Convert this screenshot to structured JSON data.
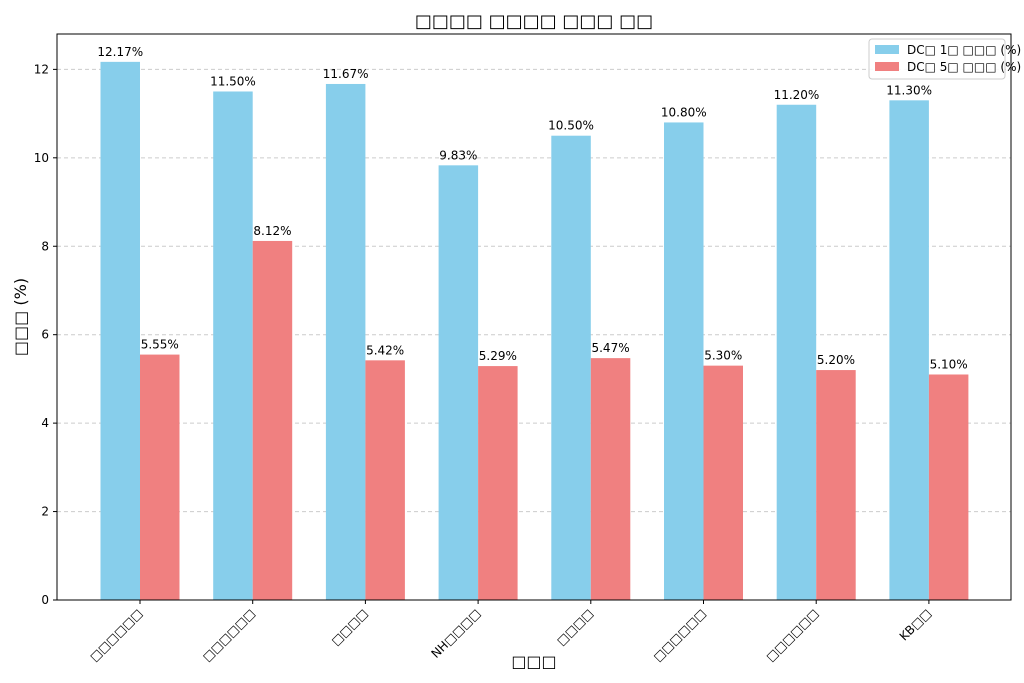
{
  "chart_data": {
    "type": "bar",
    "title": "□□□□ □□□□ □□□ □□",
    "xlabel": "□□□",
    "ylabel": "□□□ (%)",
    "categories": [
      "□□□□□□",
      "□□□□□□",
      "□□□□",
      "NH□□□□",
      "□□□□",
      "□□□□□□",
      "□□□□□□",
      "KB□□"
    ],
    "series": [
      {
        "name": "DC□ 1□ □□□ (%)",
        "color": "#87CEEB",
        "values": [
          12.17,
          11.5,
          11.67,
          9.83,
          10.5,
          10.8,
          11.2,
          11.3
        ],
        "labels": [
          "12.17%",
          "11.50%",
          "11.67%",
          "9.83%",
          "10.50%",
          "10.80%",
          "11.20%",
          "11.30%"
        ]
      },
      {
        "name": "DC□ 5□ □□□ (%)",
        "color": "#F08080",
        "values": [
          5.55,
          8.12,
          5.42,
          5.29,
          5.47,
          5.3,
          5.2,
          5.1
        ],
        "labels": [
          "5.55%",
          "8.12%",
          "5.42%",
          "5.29%",
          "5.47%",
          "5.30%",
          "5.20%",
          "5.10%"
        ]
      }
    ],
    "ylim": [
      0,
      12.8
    ],
    "yticks": [
      0,
      2,
      4,
      6,
      8,
      10,
      12
    ],
    "grid": "y-dashed",
    "legend": "top-right"
  }
}
